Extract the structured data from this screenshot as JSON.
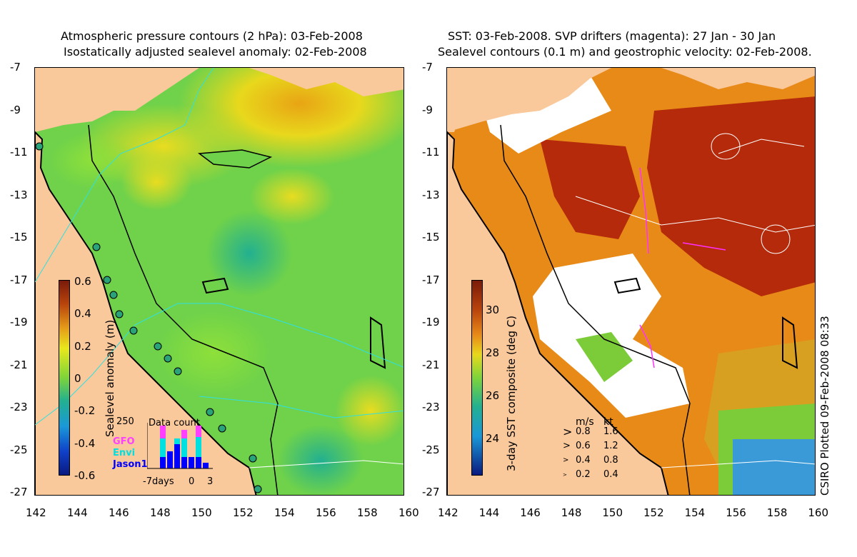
{
  "left": {
    "title_line1": "Atmospheric pressure contours (2 hPa): 03-Feb-2008",
    "title_line2": "Isostatically adjusted sealevel anomaly: 02-Feb-2008",
    "colorbar_label": "Sealevel anomaly (m)",
    "colorbar_ticks": [
      "0.6",
      "0.4",
      "0.2",
      "0",
      "-0.2",
      "-0.4",
      "-0.6"
    ],
    "inset": {
      "title": "Data count",
      "ymax": "250",
      "legend": [
        "GFO",
        "Envi",
        "Jason1"
      ],
      "x_ticks": [
        "-7days",
        "0",
        "3"
      ]
    }
  },
  "right": {
    "title_line1": "SST: 03-Feb-2008. SVP drifters (magenta): 27 Jan - 30 Jan",
    "title_line2": "Sealevel contours (0.1 m) and geostrophic velocity: 02-Feb-2008.",
    "colorbar_label": "3-day SST composite (deg C)",
    "colorbar_ticks": [
      "30",
      "28",
      "26",
      "24"
    ],
    "speed_legend": {
      "header_ms": "m/s",
      "header_kt": "kt",
      "rows": [
        {
          "ms": "0.8",
          "kt": "1.6"
        },
        {
          "ms": "0.6",
          "kt": "1.2"
        },
        {
          "ms": "0.4",
          "kt": "0.8"
        },
        {
          "ms": "0.2",
          "kt": "0.4"
        }
      ]
    }
  },
  "y_ticks": [
    "-7",
    "-9",
    "-11",
    "-13",
    "-15",
    "-17",
    "-19",
    "-21",
    "-23",
    "-25",
    "-27"
  ],
  "x_ticks": [
    "142",
    "144",
    "146",
    "148",
    "150",
    "152",
    "154",
    "156",
    "158",
    "160"
  ],
  "footer_vertical": "CSIRO Plotted 09-Feb-2008 08:33",
  "colors": {
    "land": "#f9c89b",
    "sla_green": "#6fd24a",
    "sla_yellow": "#e6e21a",
    "sla_orange": "#e9a018",
    "sla_teal": "#2bb38a",
    "sst_red": "#b3240a",
    "sst_orange": "#e06a10",
    "cloud": "#ffffff"
  }
}
